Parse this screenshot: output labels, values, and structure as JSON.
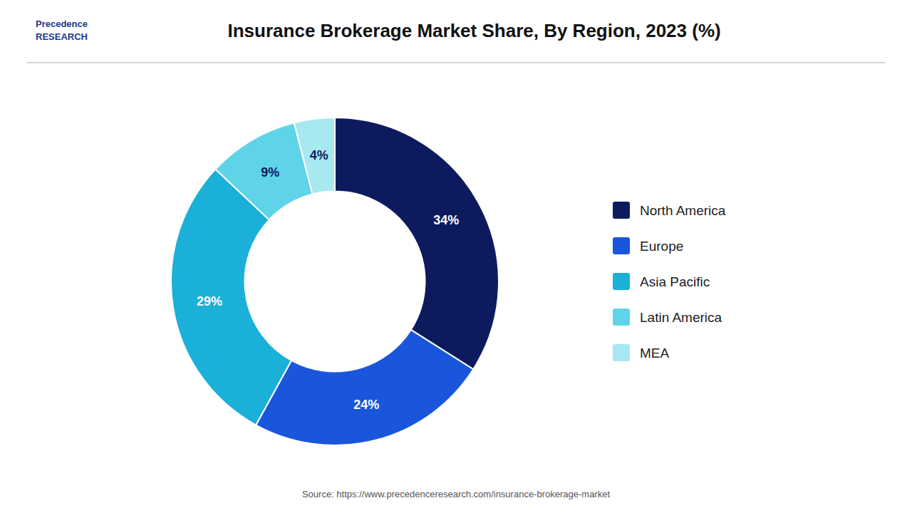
{
  "chart_data": {
    "type": "donut",
    "title": "Insurance Brokerage Market Share, By Region, 2023 (%)",
    "categories": [
      "North America",
      "Europe",
      "Asia Pacific",
      "Latin America",
      "MEA"
    ],
    "values": [
      34,
      24,
      29,
      9,
      4
    ],
    "value_labels": [
      "34%",
      "24%",
      "29%",
      "9%",
      "4%"
    ],
    "colors": [
      "#0d1b5e",
      "#1a56db",
      "#1ab0d8",
      "#5fd4e8",
      "#a8e8f0"
    ],
    "data_labels": true,
    "legend": "right",
    "annotations": [
      "Precedence",
      "RESEARCH",
      "Source: https://www.precedenceresearch.com/insurance-brokerage-market"
    ]
  }
}
